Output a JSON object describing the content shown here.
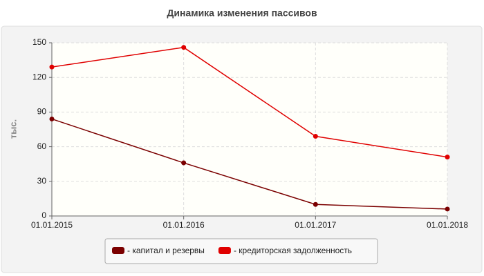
{
  "chart_data": {
    "type": "line",
    "title": "Динамика изменения пассивов",
    "y_label": "тыс.",
    "categories": [
      "01.01.2015",
      "01.01.2016",
      "01.01.2017",
      "01.01.2018"
    ],
    "series": [
      {
        "name": "- капитал и резервы",
        "color": "#7b0000",
        "values": [
          84,
          46,
          10,
          6
        ]
      },
      {
        "name": "- кредиторская задолженность",
        "color": "#e00000",
        "values": [
          129,
          146,
          69,
          51
        ]
      }
    ],
    "ylim": [
      0,
      150
    ],
    "yticks": [
      0,
      30,
      60,
      90,
      120,
      150
    ],
    "grid": true,
    "legend": "bottom"
  }
}
